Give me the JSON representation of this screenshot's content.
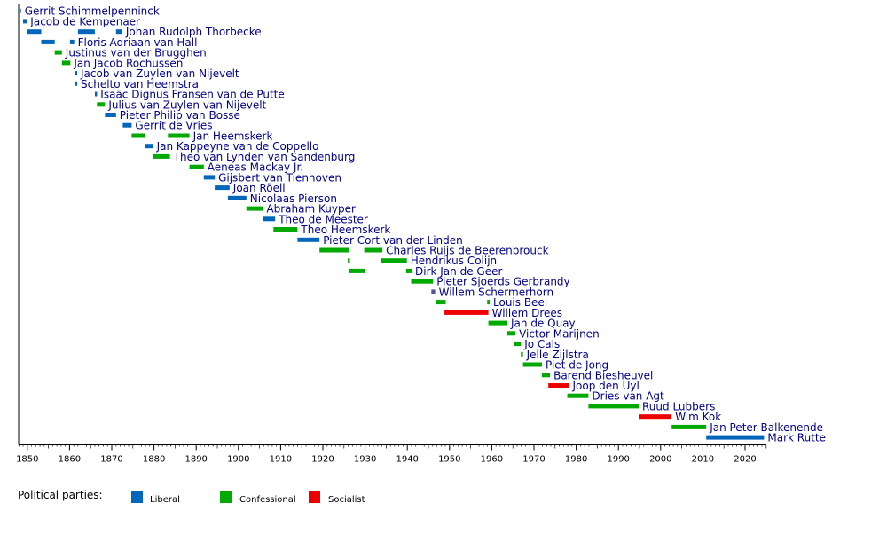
{
  "colors": {
    "Liberal": "#0066bb",
    "Confessional": "#00aa00",
    "Socialist": "#ee0000",
    "Other": "#555599",
    "label": "#00008b",
    "axis": "#000000"
  },
  "legend": {
    "title": "Political parties:",
    "items": [
      "Liberal",
      "Confessional",
      "Socialist"
    ]
  },
  "chart_data": {
    "type": "timeline",
    "xlim": [
      1848,
      2025
    ],
    "xticks": [
      1850,
      1860,
      1870,
      1880,
      1890,
      1900,
      1910,
      1920,
      1930,
      1940,
      1950,
      1960,
      1970,
      1980,
      1990,
      2000,
      2010,
      2020
    ],
    "grid": false,
    "legend_position": "bottom",
    "rows": [
      {
        "name": "Gerrit Schimmelpenninck",
        "terms": [
          {
            "party": "Liberal",
            "start": 1848.2,
            "end": 1848.5
          }
        ]
      },
      {
        "name": "Jacob de Kempenaer",
        "terms": [
          {
            "party": "Liberal",
            "start": 1849.0,
            "end": 1849.9
          }
        ]
      },
      {
        "name": "Johan Rudolph Thorbecke",
        "terms": [
          {
            "party": "Liberal",
            "start": 1849.9,
            "end": 1853.3
          },
          {
            "party": "Liberal",
            "start": 1862.0,
            "end": 1866.0
          },
          {
            "party": "Liberal",
            "start": 1871.0,
            "end": 1872.5
          }
        ]
      },
      {
        "name": "Floris Adriaan van Hall",
        "terms": [
          {
            "party": "Liberal",
            "start": 1853.3,
            "end": 1856.5
          },
          {
            "party": "Liberal",
            "start": 1860.1,
            "end": 1861.1
          }
        ]
      },
      {
        "name": "Justinus van der Brugghen",
        "terms": [
          {
            "party": "Confessional",
            "start": 1856.5,
            "end": 1858.2
          }
        ]
      },
      {
        "name": "Jan Jacob Rochussen",
        "terms": [
          {
            "party": "Confessional",
            "start": 1858.2,
            "end": 1860.2
          }
        ]
      },
      {
        "name": "Jacob van Zuylen van Nijevelt",
        "terms": [
          {
            "party": "Liberal",
            "start": 1861.2,
            "end": 1861.8
          }
        ]
      },
      {
        "name": "Schelto van Heemstra",
        "terms": [
          {
            "party": "Liberal",
            "start": 1861.3,
            "end": 1861.8
          }
        ]
      },
      {
        "name": "Isaäc Dignus Fransen van de Putte",
        "terms": [
          {
            "party": "Liberal",
            "start": 1866.0,
            "end": 1866.5
          }
        ]
      },
      {
        "name": "Julius van Zuylen van Nijevelt",
        "terms": [
          {
            "party": "Confessional",
            "start": 1866.5,
            "end": 1868.4
          }
        ]
      },
      {
        "name": "Pieter Philip van Bosse",
        "terms": [
          {
            "party": "Liberal",
            "start": 1868.4,
            "end": 1871.0
          }
        ]
      },
      {
        "name": "Gerrit de Vries",
        "terms": [
          {
            "party": "Liberal",
            "start": 1872.6,
            "end": 1874.7
          }
        ]
      },
      {
        "name": "Jan Heemskerk",
        "terms": [
          {
            "party": "Confessional",
            "start": 1874.7,
            "end": 1877.9
          },
          {
            "party": "Confessional",
            "start": 1883.3,
            "end": 1888.4
          }
        ]
      },
      {
        "name": "Jan Kappeyne van de Coppello",
        "terms": [
          {
            "party": "Liberal",
            "start": 1877.9,
            "end": 1879.8
          }
        ]
      },
      {
        "name": "Theo van Lynden van Sandenburg",
        "terms": [
          {
            "party": "Confessional",
            "start": 1879.8,
            "end": 1883.8
          }
        ]
      },
      {
        "name": "Aeneas Mackay Jr.",
        "terms": [
          {
            "party": "Confessional",
            "start": 1888.4,
            "end": 1891.8
          }
        ]
      },
      {
        "name": "Gijsbert van Tienhoven",
        "terms": [
          {
            "party": "Liberal",
            "start": 1891.8,
            "end": 1894.4
          }
        ]
      },
      {
        "name": "Joan Röell",
        "terms": [
          {
            "party": "Liberal",
            "start": 1894.4,
            "end": 1897.9
          }
        ]
      },
      {
        "name": "Nicolaas Pierson",
        "terms": [
          {
            "party": "Liberal",
            "start": 1897.5,
            "end": 1901.9
          }
        ]
      },
      {
        "name": "Abraham Kuyper",
        "terms": [
          {
            "party": "Confessional",
            "start": 1901.9,
            "end": 1905.8
          }
        ]
      },
      {
        "name": "Theo de Meester",
        "terms": [
          {
            "party": "Liberal",
            "start": 1905.8,
            "end": 1908.7
          }
        ]
      },
      {
        "name": "Theo Heemskerk",
        "terms": [
          {
            "party": "Confessional",
            "start": 1908.3,
            "end": 1914.0
          }
        ]
      },
      {
        "name": "Pieter Cort van der Linden",
        "terms": [
          {
            "party": "Liberal",
            "start": 1914.0,
            "end": 1919.2
          }
        ]
      },
      {
        "name": "Charles Ruijs de Beerenbrouck",
        "terms": [
          {
            "party": "Confessional",
            "start": 1919.2,
            "end": 1926.1
          },
          {
            "party": "Confessional",
            "start": 1929.8,
            "end": 1934.1
          }
        ]
      },
      {
        "name": "Hendrikus Colijn",
        "terms": [
          {
            "party": "Confessional",
            "start": 1925.9,
            "end": 1926.4
          },
          {
            "party": "Confessional",
            "start": 1933.8,
            "end": 1939.9
          }
        ]
      },
      {
        "name": "Dirk Jan de Geer",
        "terms": [
          {
            "party": "Confessional",
            "start": 1926.3,
            "end": 1929.9
          },
          {
            "party": "Confessional",
            "start": 1939.7,
            "end": 1941.0
          }
        ]
      },
      {
        "name": "Pieter Sjoerds Gerbrandy",
        "terms": [
          {
            "party": "Confessional",
            "start": 1940.9,
            "end": 1946.1
          }
        ]
      },
      {
        "name": "Willem Schermerhorn",
        "terms": [
          {
            "party": "Other",
            "start": 1945.7,
            "end": 1946.6
          }
        ]
      },
      {
        "name": "Louis Beel",
        "terms": [
          {
            "party": "Confessional",
            "start": 1946.7,
            "end": 1949.1
          },
          {
            "party": "Confessional",
            "start": 1958.9,
            "end": 1959.5
          }
        ]
      },
      {
        "name": "Willem Drees",
        "terms": [
          {
            "party": "Socialist",
            "start": 1948.8,
            "end": 1959.2
          }
        ]
      },
      {
        "name": "Jan de Quay",
        "terms": [
          {
            "party": "Confessional",
            "start": 1959.2,
            "end": 1963.7
          }
        ]
      },
      {
        "name": "Victor Marijnen",
        "terms": [
          {
            "party": "Confessional",
            "start": 1963.7,
            "end": 1965.6
          }
        ]
      },
      {
        "name": "Jo Cals",
        "terms": [
          {
            "party": "Confessional",
            "start": 1965.2,
            "end": 1966.9
          }
        ]
      },
      {
        "name": "Jelle Zijlstra",
        "terms": [
          {
            "party": "Confessional",
            "start": 1966.9,
            "end": 1967.4
          }
        ]
      },
      {
        "name": "Piet de Jong",
        "terms": [
          {
            "party": "Confessional",
            "start": 1967.4,
            "end": 1971.9
          }
        ]
      },
      {
        "name": "Barend Biesheuvel",
        "terms": [
          {
            "party": "Confessional",
            "start": 1971.9,
            "end": 1973.8
          }
        ]
      },
      {
        "name": "Joop den Uyl",
        "terms": [
          {
            "party": "Socialist",
            "start": 1973.4,
            "end": 1978.3
          }
        ]
      },
      {
        "name": "Dries van Agt",
        "terms": [
          {
            "party": "Confessional",
            "start": 1977.9,
            "end": 1982.9
          }
        ]
      },
      {
        "name": "Ruud Lubbers",
        "terms": [
          {
            "party": "Confessional",
            "start": 1982.9,
            "end": 1994.8
          }
        ]
      },
      {
        "name": "Wim Kok",
        "terms": [
          {
            "party": "Socialist",
            "start": 1994.8,
            "end": 2002.6
          }
        ]
      },
      {
        "name": "Jan Peter Balkenende",
        "terms": [
          {
            "party": "Confessional",
            "start": 2002.6,
            "end": 2010.8
          }
        ]
      },
      {
        "name": "Mark Rutte",
        "terms": [
          {
            "party": "Liberal",
            "start": 2010.8,
            "end": 2024.5
          }
        ]
      }
    ]
  }
}
